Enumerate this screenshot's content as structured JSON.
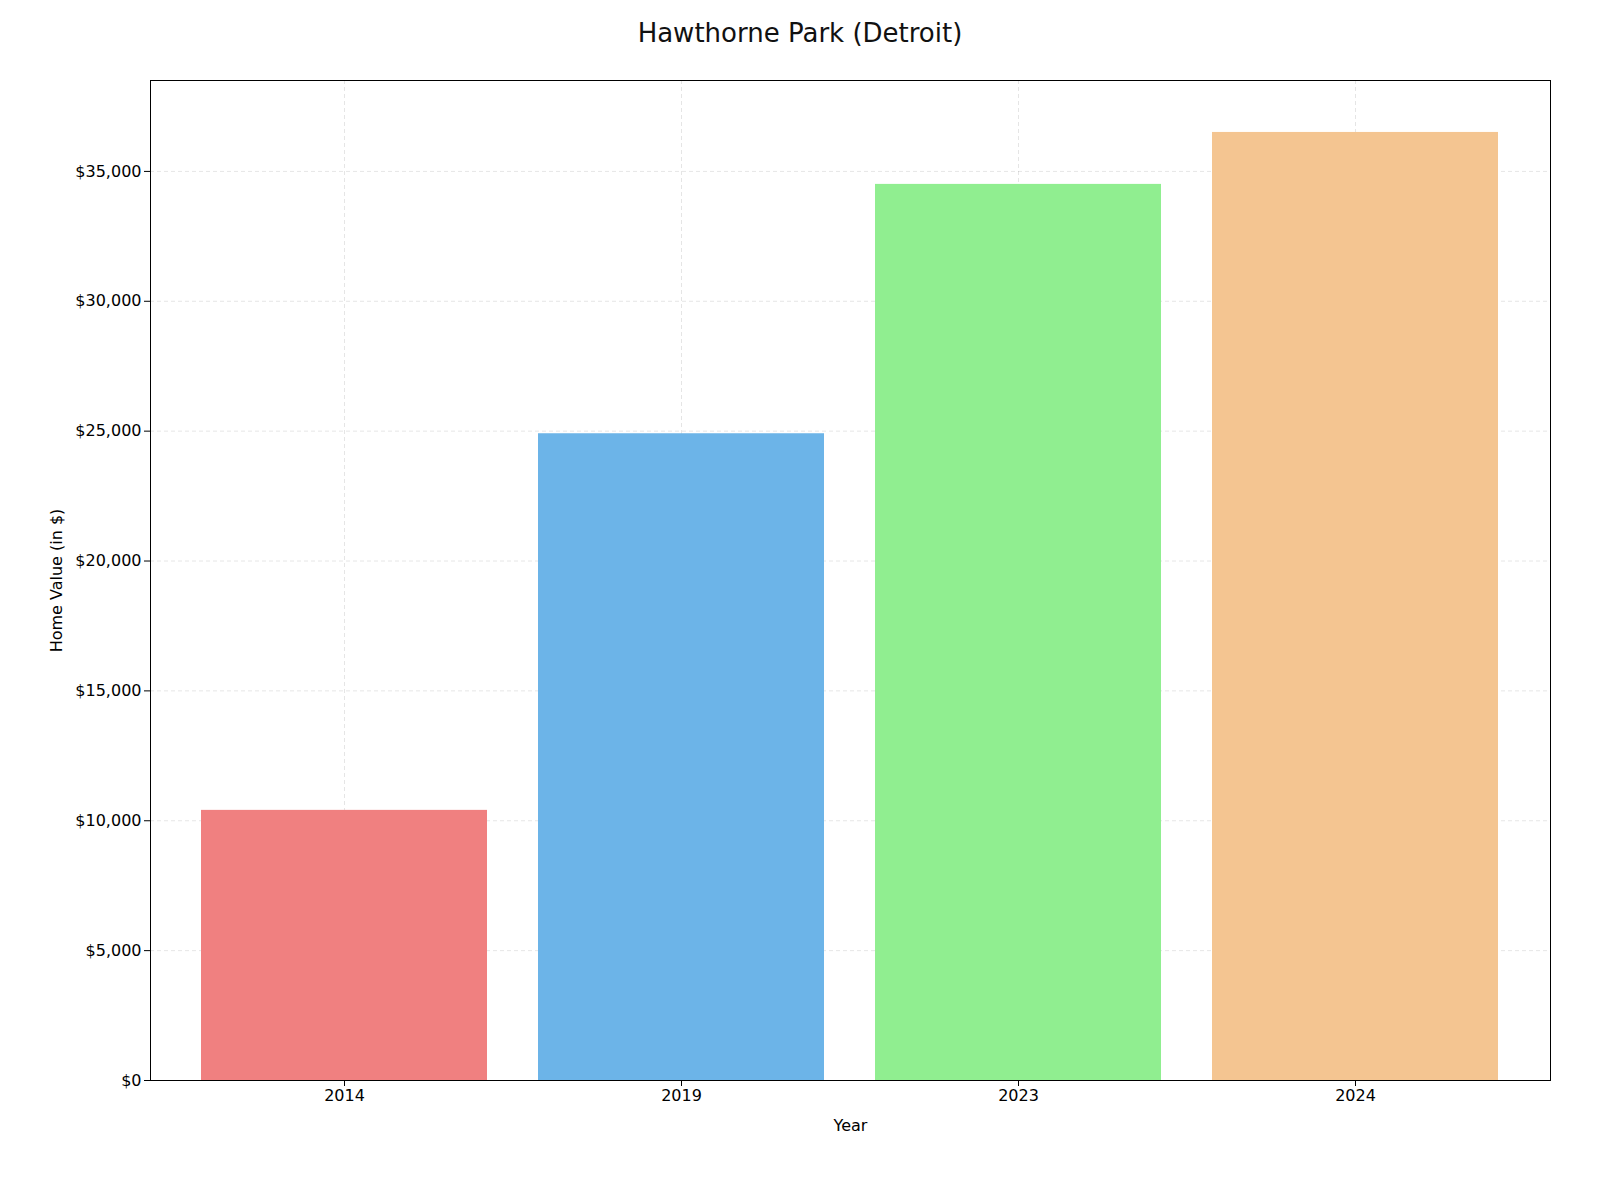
{
  "chart_data": {
    "type": "bar",
    "title": "Hawthorne Park (Detroit)",
    "categories": [
      "2014",
      "2019",
      "2023",
      "2024"
    ],
    "values": [
      10400,
      24900,
      34500,
      36500
    ],
    "colors": [
      "#F08080",
      "#6CB4E8",
      "#90EE90",
      "#F4C591"
    ],
    "xlabel": "Year",
    "ylabel": "Home Value (in $)",
    "ylim": [
      0,
      38500
    ],
    "yticks": [
      {
        "value": 0,
        "label": "$0"
      },
      {
        "value": 5000,
        "label": "$5,000"
      },
      {
        "value": 10000,
        "label": "$10,000"
      },
      {
        "value": 15000,
        "label": "$15,000"
      },
      {
        "value": 20000,
        "label": "$20,000"
      },
      {
        "value": 25000,
        "label": "$25,000"
      },
      {
        "value": 30000,
        "label": "$30,000"
      },
      {
        "value": 35000,
        "label": "$35,000"
      }
    ],
    "grid": true
  }
}
